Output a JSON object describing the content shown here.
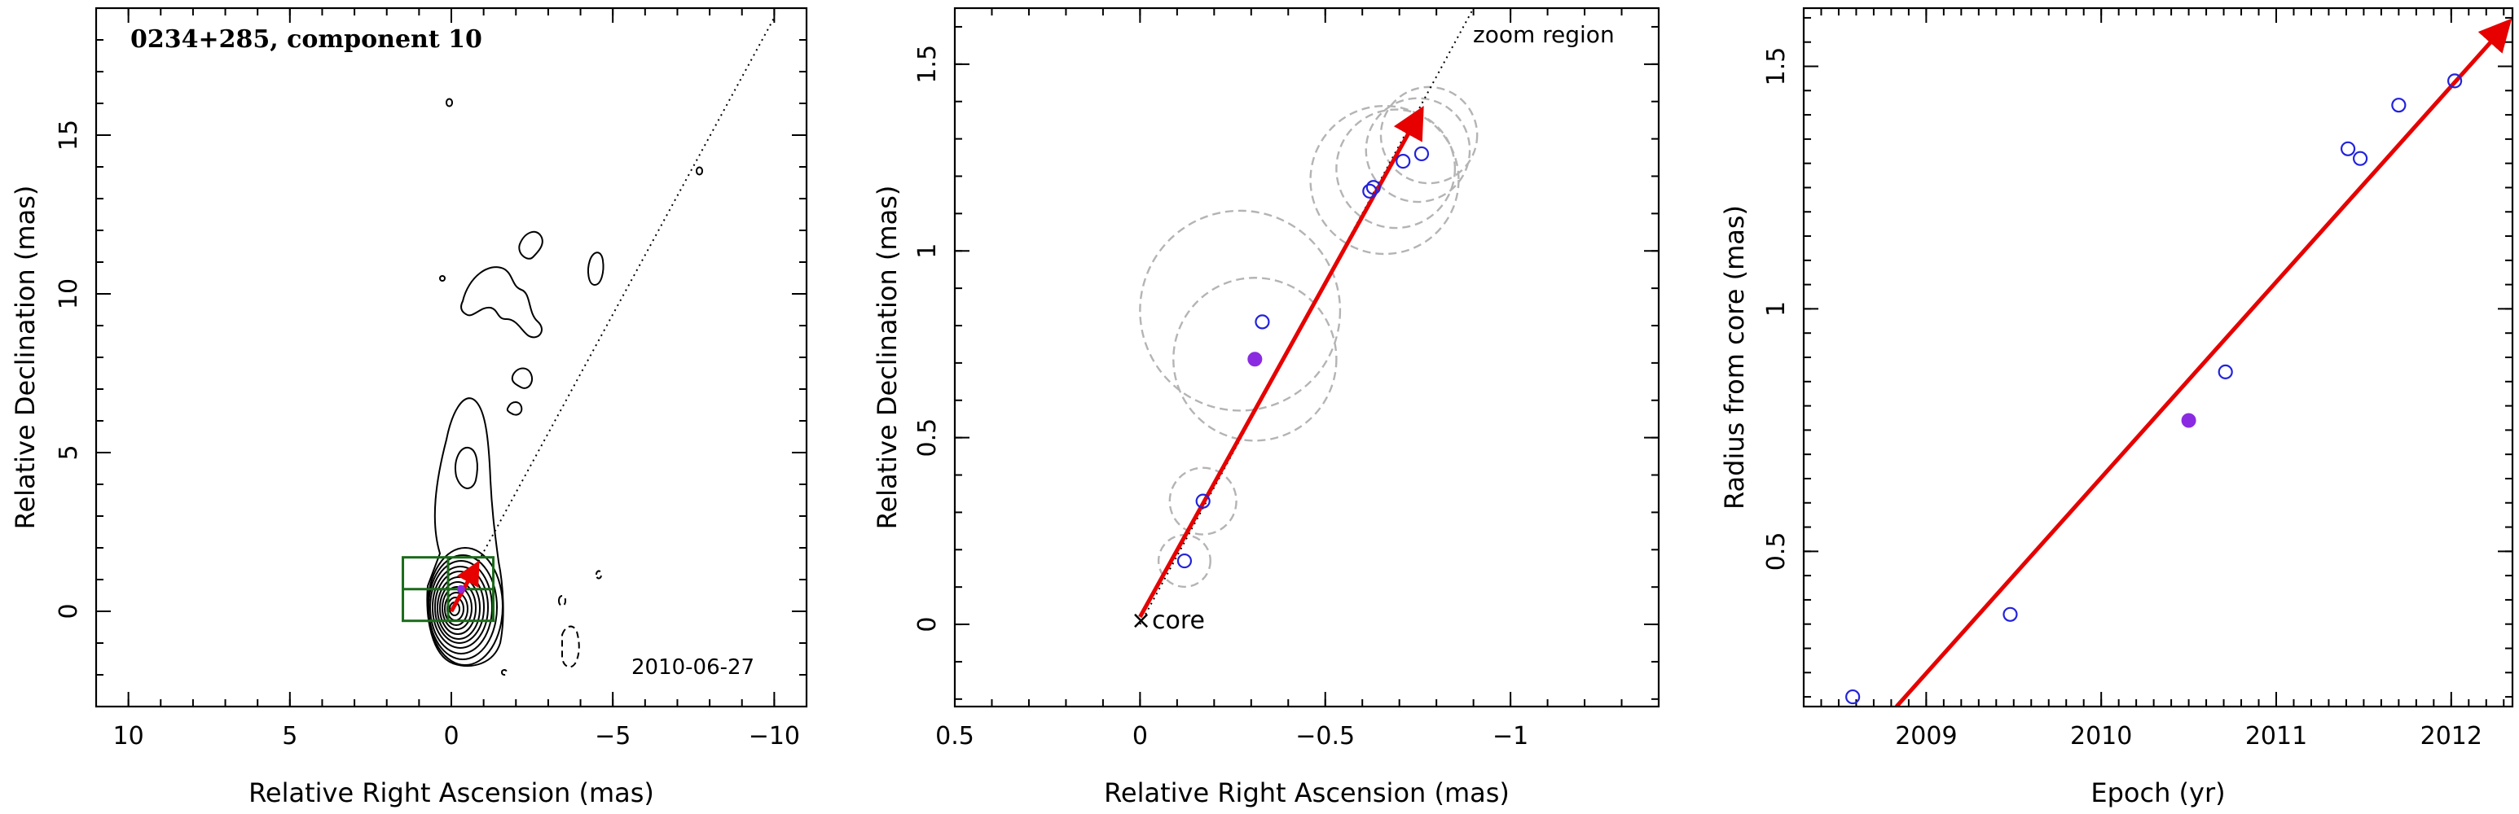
{
  "colors": {
    "fit": "#e60000",
    "open_point": "#2222dd",
    "filled_point": "#8a2be2",
    "contour": "#000000",
    "circle": "#b4b4b4",
    "box": "#1a6b1a"
  },
  "chart_data": [
    {
      "type": "scatter",
      "title": "0234+285, component 10",
      "xlabel": "Relative Right Ascension (mas)",
      "ylabel": "Relative Declination (mas)",
      "xlim": [
        11,
        -11
      ],
      "ylim": [
        -3,
        19
      ],
      "xticks": [
        10,
        5,
        0,
        -5,
        -10
      ],
      "yticks": [
        0,
        5,
        10,
        15
      ],
      "date_label": "2010-06-27",
      "contour_map": "VLBI jet contour map (nested contours around core, extended emission to north)",
      "core": [
        0,
        0
      ],
      "arrow": {
        "from": [
          0,
          0
        ],
        "to": [
          -0.75,
          1.38
        ]
      },
      "zoom_box": [
        [
          1.5,
          -0.3
        ],
        [
          -1.3,
          1.7
        ]
      ],
      "direction_line": {
        "from": [
          0,
          0
        ],
        "to": [
          -10,
          18.7
        ]
      }
    },
    {
      "type": "scatter",
      "xlabel": "Relative Right Ascension (mas)",
      "ylabel": "Relative Declination (mas)",
      "xlim": [
        0.5,
        -1.4
      ],
      "ylim": [
        -0.22,
        1.65
      ],
      "xticks": [
        0.5,
        0,
        -0.5,
        -1
      ],
      "xtick_labels": [
        "0.5",
        "0",
        "−0.5",
        "−1"
      ],
      "yticks": [
        0,
        0.5,
        1,
        1.5
      ],
      "annotations": {
        "zoom": "zoom region",
        "core": "core",
        "core_marker": "×"
      },
      "points_open": [
        {
          "x": -0.12,
          "y": 0.17
        },
        {
          "x": -0.17,
          "y": 0.33
        },
        {
          "x": -0.33,
          "y": 0.81
        },
        {
          "x": -0.63,
          "y": 1.17
        },
        {
          "x": -0.62,
          "y": 1.16
        },
        {
          "x": -0.71,
          "y": 1.24
        },
        {
          "x": -0.76,
          "y": 1.26
        }
      ],
      "point_filled": {
        "x": -0.31,
        "y": 0.71
      },
      "uncertainty_circles": [
        {
          "x": -0.12,
          "y": 0.17,
          "r": 0.07
        },
        {
          "x": -0.17,
          "y": 0.33,
          "r": 0.09
        },
        {
          "x": -0.31,
          "y": 0.71,
          "r": 0.22
        },
        {
          "x": -0.27,
          "y": 0.84,
          "r": 0.27
        },
        {
          "x": -0.66,
          "y": 1.19,
          "r": 0.2
        },
        {
          "x": -0.69,
          "y": 1.22,
          "r": 0.16
        },
        {
          "x": -0.75,
          "y": 1.27,
          "r": 0.14
        },
        {
          "x": -0.78,
          "y": 1.31,
          "r": 0.13
        }
      ],
      "arrow": {
        "from": [
          0,
          0.02
        ],
        "to": [
          -0.75,
          1.36
        ]
      },
      "direction_line": {
        "from": [
          0,
          0
        ],
        "to": [
          -0.9,
          1.65
        ]
      }
    },
    {
      "type": "scatter",
      "xlabel": "Epoch (yr)",
      "ylabel": "Radius from core (mas)",
      "xlim": [
        2008.3,
        2012.35
      ],
      "ylim": [
        0.18,
        1.62
      ],
      "xticks": [
        2009,
        2010,
        2011,
        2012
      ],
      "yticks": [
        0.5,
        1,
        1.5
      ],
      "points_open": [
        {
          "x": 2008.58,
          "y": 0.2
        },
        {
          "x": 2009.48,
          "y": 0.37
        },
        {
          "x": 2010.71,
          "y": 0.87
        },
        {
          "x": 2011.41,
          "y": 1.33
        },
        {
          "x": 2011.48,
          "y": 1.31
        },
        {
          "x": 2011.7,
          "y": 1.42
        },
        {
          "x": 2012.02,
          "y": 1.47
        }
      ],
      "point_filled": {
        "x": 2010.5,
        "y": 0.77
      },
      "fit_line": {
        "from": [
          2008.83,
          0.18
        ],
        "to": [
          2012.3,
          1.58
        ]
      }
    }
  ]
}
